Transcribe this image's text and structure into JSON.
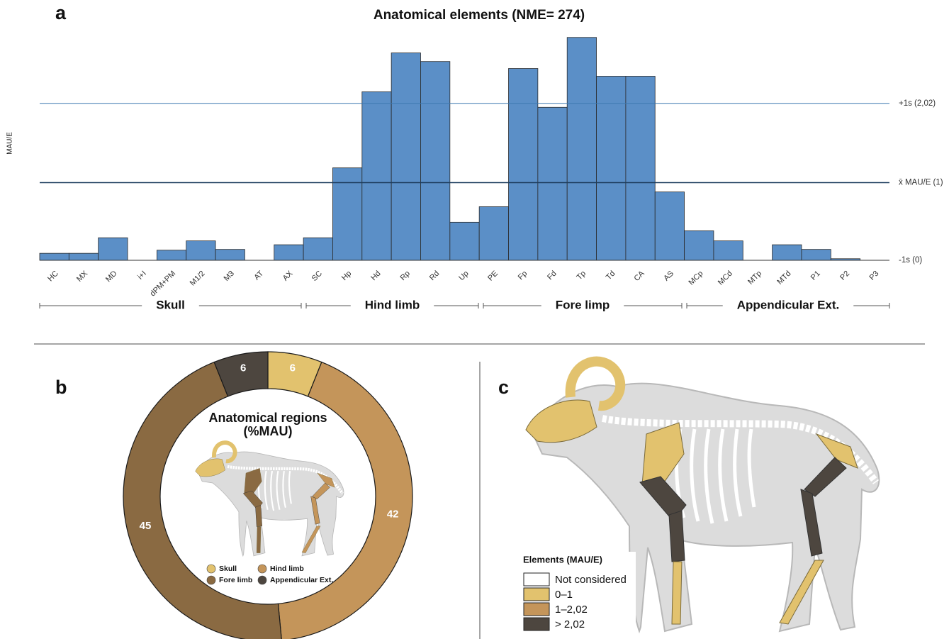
{
  "chart_data": [
    {
      "type": "bar",
      "panel_label": "a",
      "title": "Anatomical elements (NME= 274)",
      "y_label": "MAU/E",
      "categories": [
        "HC",
        "MX",
        "MD",
        "i+I",
        "dPM+PM",
        "M1/2",
        "M3",
        "AT",
        "AX",
        "SC",
        "Hp",
        "Hd",
        "Rp",
        "Rd",
        "Up",
        "PE",
        "Fp",
        "Fd",
        "Tp",
        "Td",
        "CA",
        "AS",
        "MCp",
        "MCd",
        "MTp",
        "MTd",
        "P1",
        "P2",
        "P3"
      ],
      "values": [
        0.09,
        0.09,
        0.29,
        0,
        0.13,
        0.25,
        0.14,
        0,
        0.2,
        0.29,
        1.19,
        2.17,
        2.67,
        2.56,
        0.49,
        0.69,
        2.47,
        1.97,
        2.87,
        2.37,
        2.37,
        0.88,
        0.38,
        0.25,
        0,
        0.2,
        0.14,
        0.02,
        0
      ],
      "color": "#5b8fc7",
      "ylim": [
        0,
        3
      ],
      "reference_lines": [
        {
          "value": 0,
          "label": "-1s (0)",
          "color": "#333333"
        },
        {
          "value": 1,
          "label": "x̄ MAU/E (1)",
          "color": "#1d3d5e"
        },
        {
          "value": 2.02,
          "label": "+1s (2,02)",
          "color": "#3d78b0"
        }
      ],
      "groups": [
        "Skull",
        "Hind limb",
        "Fore limp",
        "Appendicular Ext."
      ]
    },
    {
      "type": "pie",
      "panel_label": "b",
      "title": "Anatomical regions (%MAU)",
      "categories": [
        "Skull",
        "Hind limb",
        "Fore limb",
        "Appendicular Ext."
      ],
      "values": [
        6,
        42,
        45,
        6
      ],
      "colors": [
        "#e2c26e",
        "#c4955a",
        "#8a6a42",
        "#4d463f"
      ]
    }
  ],
  "panel_c": {
    "panel_label": "c",
    "legend_title": "Elements (MAU/E)",
    "legend": [
      {
        "label": "Not considered",
        "color": "#ffffff"
      },
      {
        "label": "0–1",
        "color": "#e2c26e"
      },
      {
        "label": "1–2,02",
        "color": "#c4955a"
      },
      {
        "label": "> 2,02",
        "color": "#4d463f"
      }
    ]
  }
}
